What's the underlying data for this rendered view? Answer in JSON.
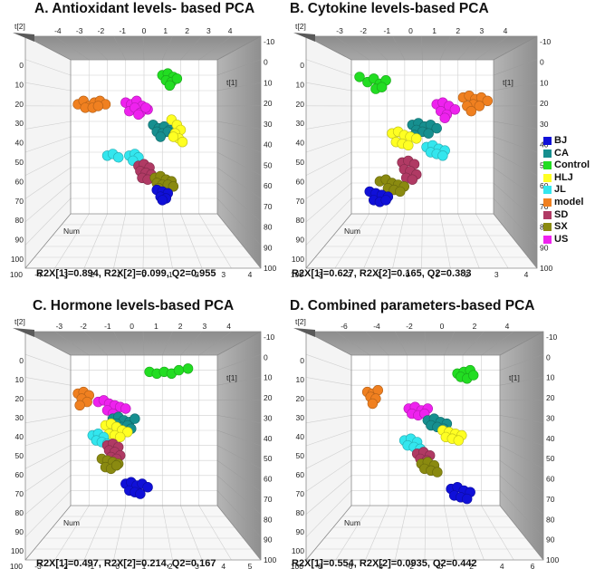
{
  "legend": [
    {
      "name": "BJ",
      "color": "#1010d8"
    },
    {
      "name": "CA",
      "color": "#168f8f"
    },
    {
      "name": "Control",
      "color": "#22dd22"
    },
    {
      "name": "HLJ",
      "color": "#ffff22"
    },
    {
      "name": "JL",
      "color": "#33e6ee"
    },
    {
      "name": "model",
      "color": "#f08020"
    },
    {
      "name": "SD",
      "color": "#b03a64"
    },
    {
      "name": "SX",
      "color": "#8a8a10"
    },
    {
      "name": "US",
      "color": "#ee22ee"
    }
  ],
  "chart_data": [
    {
      "type": "scatter",
      "title": "A. Antioxidant levels- based PCA",
      "stats": "R2X[1]=0.894, R2X[2]=0.099, Q2=0.955",
      "axis_labels": {
        "top": "t[2]",
        "right": "t[1]",
        "floor": "Num"
      },
      "top_ticks": [
        "-4",
        "-3",
        "-2",
        "-1",
        "0",
        "1",
        "2",
        "3",
        "4"
      ],
      "bottom_ticks": [
        "-4",
        "-3",
        "-2",
        "-1",
        "0",
        "1",
        "2",
        "3",
        "4"
      ],
      "left_ticks": [
        "0",
        "10",
        "20",
        "30",
        "40",
        "50",
        "60",
        "70",
        "80",
        "90",
        "100"
      ],
      "right_ticks": [
        "-10",
        "0",
        "10",
        "20",
        "30",
        "40",
        "50",
        "60",
        "70",
        "80",
        "90",
        "100"
      ],
      "bottom_start": "100",
      "clusters": [
        {
          "group": "model",
          "x": [
            -3.6,
            -3.3,
            -3.0,
            -2.7,
            -2.4,
            -2.1,
            -3.2,
            -2.8,
            -2.5
          ],
          "y": [
            21,
            19,
            22,
            20,
            19,
            21,
            23,
            23,
            22
          ]
        },
        {
          "group": "US",
          "x": [
            -1.0,
            -0.7,
            -0.4,
            -0.1,
            0.2,
            -0.8,
            -0.5,
            -0.2,
            0.1,
            -0.3
          ],
          "y": [
            20,
            21,
            19,
            22,
            24,
            25,
            23,
            26,
            23,
            27
          ]
        },
        {
          "group": "Control",
          "x": [
            1.0,
            1.3,
            1.6,
            1.2,
            1.5,
            1.8,
            1.4
          ],
          "y": [
            4,
            3,
            5,
            7,
            8,
            6,
            10
          ]
        },
        {
          "group": "CA",
          "x": [
            0.5,
            0.8,
            1.1,
            1.4,
            0.7,
            1.0,
            1.3,
            1.6,
            0.9
          ],
          "y": [
            33,
            35,
            34,
            36,
            37,
            38,
            37,
            39,
            40
          ]
        },
        {
          "group": "HLJ",
          "x": [
            1.5,
            1.8,
            2.0,
            1.7,
            1.9,
            2.1,
            1.6
          ],
          "y": [
            30,
            33,
            36,
            38,
            41,
            43,
            40
          ]
        },
        {
          "group": "JL",
          "x": [
            -2.0,
            -1.7,
            -1.4,
            -0.8,
            -0.5,
            -0.3,
            -0.6
          ],
          "y": [
            51,
            50,
            52,
            51,
            50,
            52,
            54
          ]
        },
        {
          "group": "SD",
          "x": [
            -0.3,
            0.0,
            0.3,
            -0.2,
            0.1,
            0.4,
            -0.1,
            0.2
          ],
          "y": [
            57,
            56,
            58,
            60,
            61,
            62,
            64,
            65
          ]
        },
        {
          "group": "SX",
          "x": [
            0.6,
            0.9,
            1.2,
            1.5,
            0.7,
            1.0,
            1.3,
            1.6,
            0.8
          ],
          "y": [
            64,
            63,
            65,
            66,
            67,
            68,
            68,
            69,
            70
          ]
        },
        {
          "group": "BJ",
          "x": [
            0.7,
            1.0,
            1.3,
            0.9,
            1.2,
            1.0
          ],
          "y": [
            71,
            72,
            73,
            75,
            76,
            77
          ]
        }
      ]
    },
    {
      "type": "scatter",
      "title": "B. Cytokine levels-based PCA",
      "stats": "R2X[1]=0.627, R2X[2]=0.165, Q2=0.383",
      "axis_labels": {
        "top": "t[2]",
        "right": "t[1]",
        "floor": "Num"
      },
      "top_ticks": [
        "-3",
        "-2",
        "-1",
        "0",
        "1",
        "2",
        "3",
        "4"
      ],
      "bottom_ticks": [
        "-3",
        "-2",
        "-1",
        "0",
        "1",
        "2",
        "3",
        "4"
      ],
      "left_ticks": [
        "0",
        "10",
        "20",
        "30",
        "40",
        "50",
        "60",
        "70",
        "80",
        "90",
        "100"
      ],
      "right_ticks": [
        "-10",
        "0",
        "10",
        "20",
        "30",
        "40",
        "50",
        "60",
        "70",
        "80",
        "90",
        "100"
      ],
      "bottom_start": "100",
      "clusters": [
        {
          "group": "Control",
          "x": [
            -2.6,
            -2.2,
            -1.9,
            -1.6,
            -1.3,
            -1.8,
            -1.5
          ],
          "y": [
            5,
            8,
            6,
            9,
            7,
            12,
            11
          ]
        },
        {
          "group": "model",
          "x": [
            2.5,
            2.8,
            3.1,
            3.4,
            3.7,
            3.0,
            3.3,
            2.7,
            2.9
          ],
          "y": [
            17,
            16,
            18,
            17,
            19,
            21,
            22,
            22,
            25
          ]
        },
        {
          "group": "US",
          "x": [
            1.2,
            1.5,
            1.8,
            2.1,
            1.4,
            1.7,
            1.6
          ],
          "y": [
            21,
            20,
            22,
            24,
            25,
            27,
            29
          ]
        },
        {
          "group": "CA",
          "x": [
            0.0,
            0.3,
            0.6,
            0.9,
            1.2,
            0.2,
            0.5,
            0.8,
            0.1
          ],
          "y": [
            33,
            32,
            34,
            33,
            35,
            36,
            37,
            38,
            39
          ]
        },
        {
          "group": "HLJ",
          "x": [
            -1.0,
            -0.7,
            -0.4,
            -0.1,
            0.2,
            -0.8,
            -0.5,
            -0.2
          ],
          "y": [
            38,
            37,
            39,
            40,
            41,
            43,
            44,
            45
          ]
        },
        {
          "group": "JL",
          "x": [
            0.7,
            1.0,
            1.3,
            1.6,
            0.9,
            1.2,
            1.5
          ],
          "y": [
            46,
            45,
            47,
            48,
            49,
            50,
            51
          ]
        },
        {
          "group": "SD",
          "x": [
            -0.5,
            -0.2,
            0.1,
            -0.4,
            -0.1,
            0.2,
            -0.3,
            0.0
          ],
          "y": [
            55,
            54,
            56,
            59,
            60,
            62,
            64,
            65
          ]
        },
        {
          "group": "SX",
          "x": [
            -1.6,
            -1.3,
            -1.0,
            -0.7,
            -0.4,
            -1.2,
            -0.9,
            -0.6
          ],
          "y": [
            66,
            65,
            67,
            68,
            69,
            70,
            71,
            72
          ]
        },
        {
          "group": "BJ",
          "x": [
            -2.1,
            -1.8,
            -1.5,
            -1.2,
            -1.9,
            -1.6,
            -1.3
          ],
          "y": [
            72,
            73,
            74,
            75,
            77,
            78,
            77
          ]
        }
      ]
    },
    {
      "type": "scatter",
      "title": "C. Hormone levels-based PCA",
      "stats": "R2X[1]=0.497, R2X[2]=0.214, Q2=0.167",
      "axis_labels": {
        "top": "t[2]",
        "right": "t[1]",
        "floor": "Num"
      },
      "top_ticks": [
        "-3",
        "-2",
        "-1",
        "0",
        "1",
        "2",
        "3",
        "4"
      ],
      "bottom_ticks": [
        "-3",
        "-2",
        "-1",
        "0",
        "1",
        "2",
        "3",
        "4",
        "5"
      ],
      "left_ticks": [
        "0",
        "10",
        "20",
        "30",
        "40",
        "50",
        "60",
        "70",
        "80",
        "90",
        "100"
      ],
      "right_ticks": [
        "-10",
        "0",
        "10",
        "20",
        "30",
        "40",
        "50",
        "60",
        "70",
        "80",
        "90",
        "100"
      ],
      "bottom_start": "100",
      "clusters": [
        {
          "group": "Control",
          "x": [
            1.3,
            1.7,
            2.1,
            2.5,
            2.9,
            3.4
          ],
          "y": [
            5,
            6,
            5,
            6,
            4,
            3
          ]
        },
        {
          "group": "model",
          "x": [
            -2.6,
            -2.3,
            -2.0,
            -2.4,
            -2.1,
            -2.5
          ],
          "y": [
            18,
            17,
            19,
            21,
            23,
            25
          ]
        },
        {
          "group": "US",
          "x": [
            -1.5,
            -1.2,
            -0.9,
            -0.6,
            -0.3,
            0.0,
            -1.0,
            -0.7
          ],
          "y": [
            23,
            22,
            24,
            25,
            26,
            27,
            28,
            30
          ]
        },
        {
          "group": "CA",
          "x": [
            -0.7,
            -0.4,
            -0.1,
            0.2,
            0.5,
            -0.5,
            -0.2,
            0.1,
            0.3
          ],
          "y": [
            33,
            32,
            34,
            35,
            33,
            36,
            38,
            37,
            39
          ]
        },
        {
          "group": "HLJ",
          "x": [
            -1.1,
            -0.8,
            -0.5,
            -0.2,
            0.1,
            -0.9,
            -0.6,
            -0.3
          ],
          "y": [
            37,
            36,
            38,
            40,
            41,
            42,
            43,
            44
          ]
        },
        {
          "group": "JL",
          "x": [
            -1.8,
            -1.5,
            -1.2,
            -1.6,
            -1.3,
            -1.0
          ],
          "y": [
            43,
            42,
            44,
            46,
            47,
            48
          ]
        },
        {
          "group": "SD",
          "x": [
            -1.0,
            -0.7,
            -0.4,
            -0.9,
            -0.6,
            -0.3,
            -0.8,
            -0.5
          ],
          "y": [
            49,
            48,
            50,
            52,
            53,
            55,
            56,
            57
          ]
        },
        {
          "group": "SX",
          "x": [
            -1.3,
            -1.0,
            -0.7,
            -0.4,
            -1.1,
            -0.8,
            -0.5
          ],
          "y": [
            57,
            58,
            59,
            60,
            62,
            63,
            61
          ]
        },
        {
          "group": "BJ",
          "x": [
            0.0,
            0.3,
            0.6,
            0.9,
            1.2,
            0.2,
            0.5,
            0.8
          ],
          "y": [
            72,
            71,
            73,
            72,
            74,
            76,
            77,
            78
          ]
        }
      ]
    },
    {
      "type": "scatter",
      "title": "D. Combined parameters-based PCA",
      "stats": "R2X[1]=0.554, R2X[2]=0.0935, Q2=0.442",
      "axis_labels": {
        "top": "t[2]",
        "right": "t[1]",
        "floor": "Num"
      },
      "top_ticks": [
        "-6",
        "-4",
        "-2",
        "0",
        "2",
        "4"
      ],
      "bottom_ticks": [
        "-8",
        "-6",
        "-4",
        "-2",
        "0",
        "2",
        "4",
        "6"
      ],
      "left_ticks": [
        "0",
        "10",
        "20",
        "30",
        "40",
        "50",
        "60",
        "70",
        "80",
        "90",
        "100"
      ],
      "right_ticks": [
        "-10",
        "0",
        "10",
        "20",
        "30",
        "40",
        "50",
        "60",
        "70",
        "80",
        "90",
        "100"
      ],
      "bottom_start": "100",
      "clusters": [
        {
          "group": "model",
          "x": [
            -6.5,
            -6.0,
            -5.5,
            -6.2,
            -5.7,
            -6.0
          ],
          "y": [
            17,
            18,
            16,
            20,
            21,
            24
          ]
        },
        {
          "group": "Control",
          "x": [
            2.0,
            2.6,
            3.2,
            2.3,
            2.9,
            3.5
          ],
          "y": [
            6,
            5,
            4,
            8,
            9,
            7
          ]
        },
        {
          "group": "US",
          "x": [
            -2.6,
            -2.0,
            -1.4,
            -0.8,
            -2.3,
            -1.7,
            -1.1
          ],
          "y": [
            27,
            26,
            28,
            27,
            30,
            31,
            30
          ]
        },
        {
          "group": "CA",
          "x": [
            -0.8,
            -0.2,
            0.4,
            1.0,
            -0.5,
            0.1,
            0.7
          ],
          "y": [
            34,
            33,
            35,
            36,
            37,
            38,
            39
          ]
        },
        {
          "group": "HLJ",
          "x": [
            0.6,
            1.2,
            1.8,
            2.4,
            0.9,
            1.5,
            2.1
          ],
          "y": [
            40,
            41,
            42,
            43,
            44,
            45,
            46
          ]
        },
        {
          "group": "JL",
          "x": [
            -3.0,
            -2.4,
            -1.8,
            -2.7,
            -2.1,
            -1.5
          ],
          "y": [
            46,
            45,
            47,
            49,
            50,
            51
          ]
        },
        {
          "group": "SD",
          "x": [
            -1.8,
            -1.2,
            -0.6,
            -1.5,
            -0.9,
            -1.2
          ],
          "y": [
            54,
            53,
            55,
            57,
            58,
            60
          ]
        },
        {
          "group": "SX",
          "x": [
            -1.4,
            -0.8,
            -0.2,
            -1.1,
            -0.5,
            0.1
          ],
          "y": [
            60,
            59,
            61,
            63,
            64,
            65
          ]
        },
        {
          "group": "BJ",
          "x": [
            1.4,
            2.0,
            2.6,
            3.2,
            1.7,
            2.3,
            2.9
          ],
          "y": [
            75,
            74,
            76,
            77,
            79,
            80,
            81
          ]
        }
      ]
    }
  ]
}
